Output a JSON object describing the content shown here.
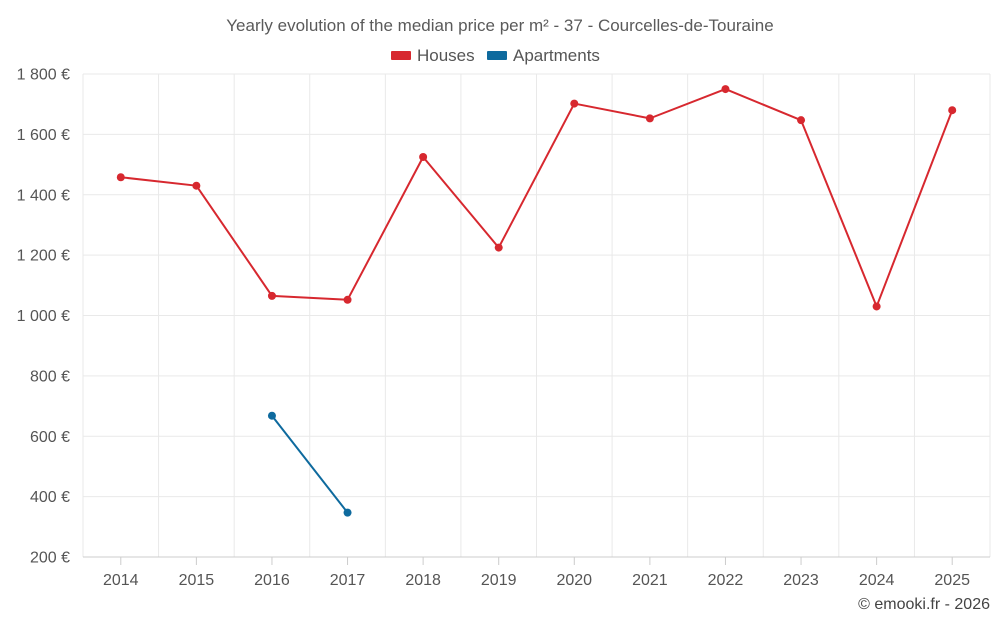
{
  "chart_data": {
    "type": "line",
    "title": "Yearly evolution of the median price per m² - 37 - Courcelles-de-Touraine",
    "xlabel": "",
    "ylabel": "",
    "categories": [
      "2014",
      "2015",
      "2016",
      "2017",
      "2018",
      "2019",
      "2020",
      "2021",
      "2022",
      "2023",
      "2024",
      "2025"
    ],
    "ylim": [
      200,
      1800
    ],
    "y_ticks": [
      200,
      400,
      600,
      800,
      1000,
      1200,
      1400,
      1600,
      1800
    ],
    "y_tick_labels": [
      "200 €",
      "400 €",
      "600 €",
      "800 €",
      "1 000 €",
      "1 200 €",
      "1 400 €",
      "1 600 €",
      "1 800 €"
    ],
    "grid": true,
    "legend_position": "top-center",
    "series": [
      {
        "name": "Houses",
        "color": "#d7282f",
        "values": [
          1458,
          1430,
          1065,
          1052,
          1525,
          1225,
          1702,
          1653,
          1750,
          1647,
          1030,
          1680
        ]
      },
      {
        "name": "Apartments",
        "color": "#0e6a9e",
        "values": [
          null,
          null,
          668,
          347,
          null,
          null,
          null,
          null,
          null,
          null,
          null,
          null
        ]
      }
    ]
  },
  "credit": "© emooki.fr - 2026"
}
